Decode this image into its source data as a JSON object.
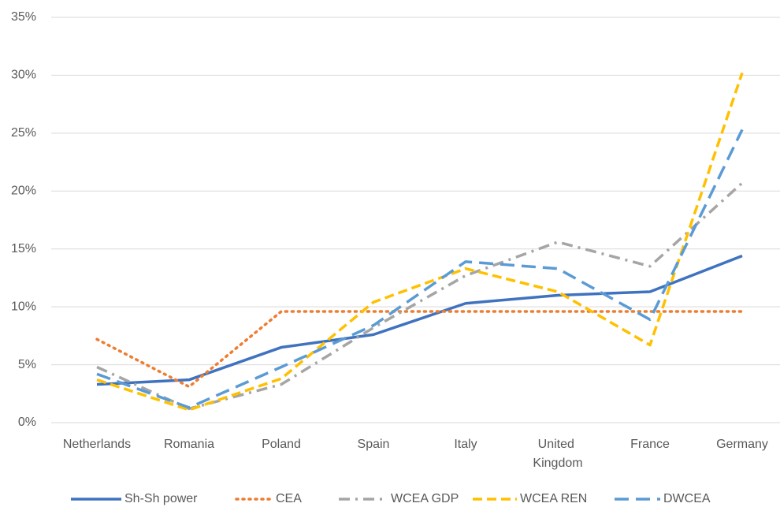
{
  "chart_data": {
    "type": "line",
    "categories": [
      "Netherlands",
      "Romania",
      "Poland",
      "Spain",
      "Italy",
      "United Kingdom",
      "France",
      "Germany"
    ],
    "series": [
      {
        "name": "Sh-Sh power",
        "color": "#3f72bf",
        "dash": "solid",
        "values": [
          3.3,
          3.7,
          6.5,
          7.6,
          10.3,
          11.0,
          11.3,
          14.4
        ]
      },
      {
        "name": "CEA",
        "color": "#ed7d31",
        "dash": "dotted",
        "values": [
          7.2,
          3.1,
          9.6,
          9.6,
          9.6,
          9.6,
          9.6,
          9.6
        ]
      },
      {
        "name": "WCEA GDP",
        "color": "#a5a5a5",
        "dash": "dash-dot",
        "values": [
          4.8,
          1.2,
          3.3,
          8.2,
          12.7,
          15.6,
          13.5,
          20.7
        ]
      },
      {
        "name": "WCEA REN",
        "color": "#ffc000",
        "dash": "dashed",
        "values": [
          3.7,
          1.1,
          3.8,
          10.4,
          13.3,
          11.3,
          6.7,
          30.2
        ]
      },
      {
        "name": "DWCEA",
        "color": "#5b9bd5",
        "dash": "long-dashed",
        "values": [
          4.2,
          1.3,
          4.8,
          8.4,
          13.9,
          13.3,
          8.9,
          25.3
        ]
      }
    ],
    "ylim": [
      0,
      35
    ],
    "yticks": [
      {
        "value": 0,
        "label": "0%"
      },
      {
        "value": 5,
        "label": "5%"
      },
      {
        "value": 10,
        "label": "10%"
      },
      {
        "value": 15,
        "label": "15%"
      },
      {
        "value": 20,
        "label": "20%"
      },
      {
        "value": 25,
        "label": "25%"
      },
      {
        "value": 30,
        "label": "30%"
      },
      {
        "value": 35,
        "label": "35%"
      }
    ],
    "grid": true,
    "legend": "bottom"
  }
}
